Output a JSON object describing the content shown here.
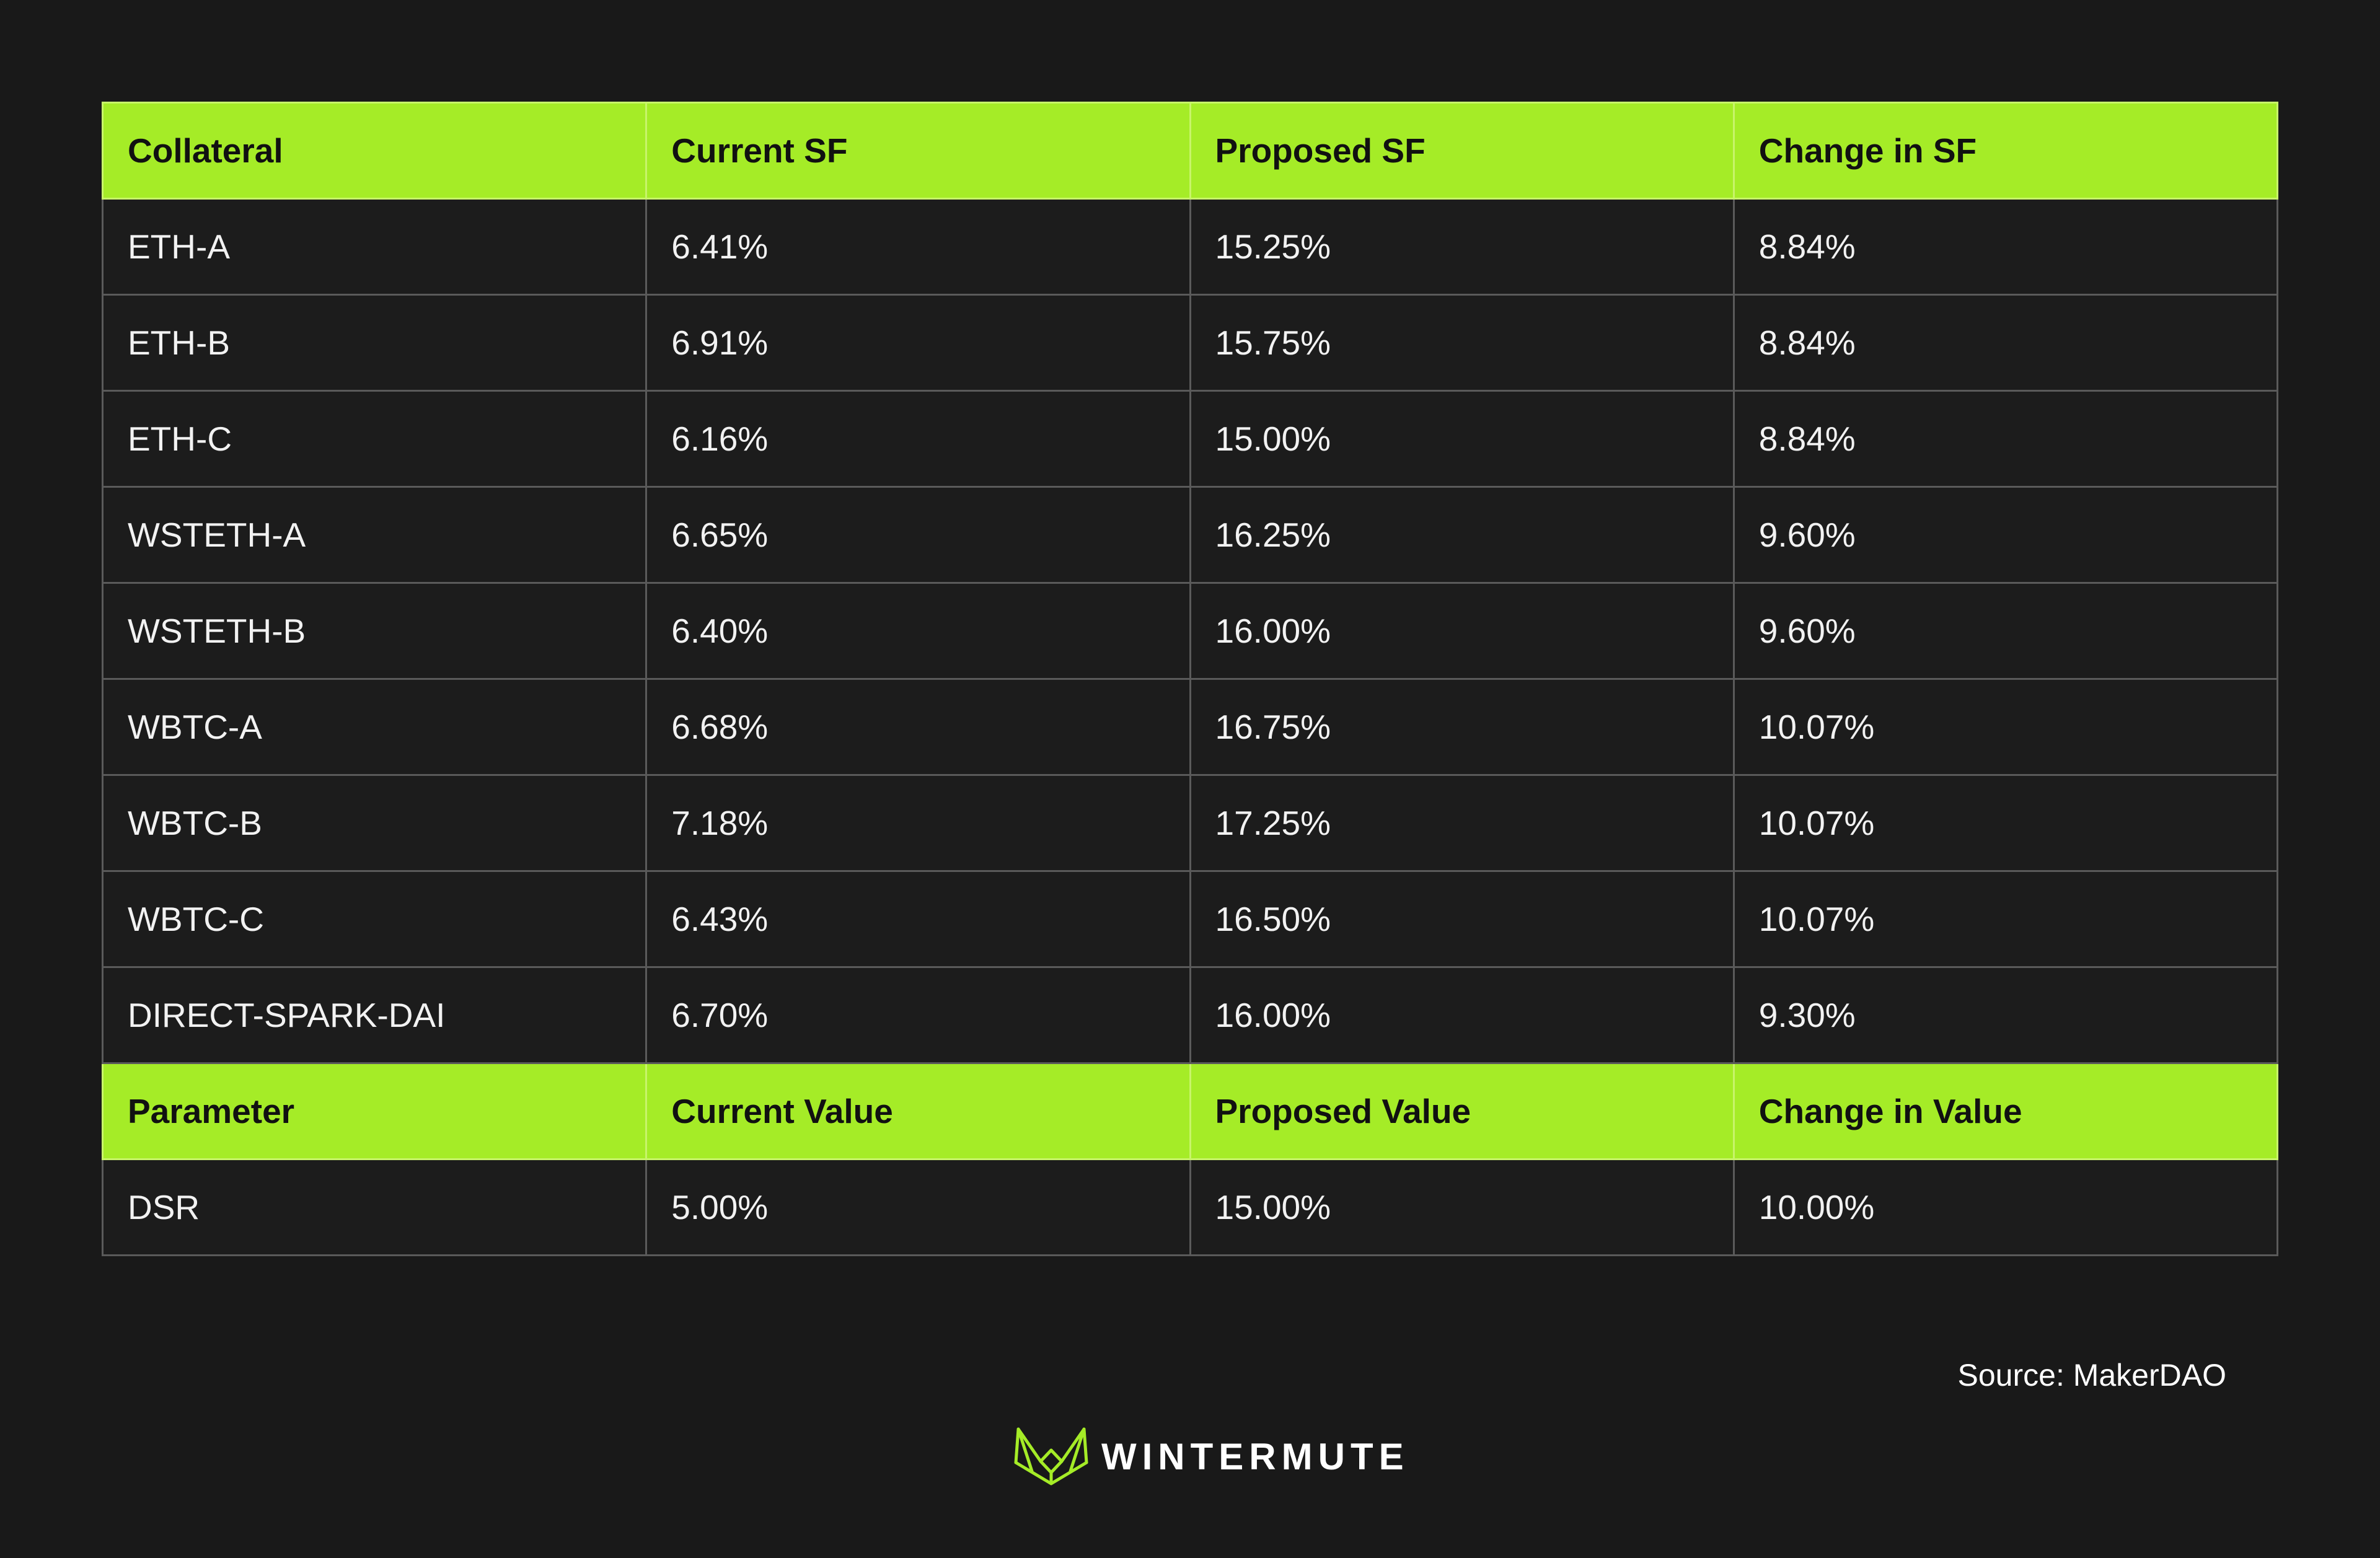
{
  "colors": {
    "background": "#191919",
    "header_accent": "#a5ec27",
    "cell_border": "#5a5a5a"
  },
  "table": {
    "header1": [
      "Collateral",
      "Current SF",
      "Proposed SF",
      "Change in SF"
    ],
    "rows1": [
      [
        "ETH-A",
        "6.41%",
        "15.25%",
        "8.84%"
      ],
      [
        "ETH-B",
        "6.91%",
        "15.75%",
        "8.84%"
      ],
      [
        "ETH-C",
        "6.16%",
        "15.00%",
        "8.84%"
      ],
      [
        "WSTETH-A",
        "6.65%",
        "16.25%",
        "9.60%"
      ],
      [
        "WSTETH-B",
        "6.40%",
        "16.00%",
        "9.60%"
      ],
      [
        "WBTC-A",
        "6.68%",
        "16.75%",
        "10.07%"
      ],
      [
        "WBTC-B",
        "7.18%",
        "17.25%",
        "10.07%"
      ],
      [
        "WBTC-C",
        "6.43%",
        "16.50%",
        "10.07%"
      ],
      [
        "DIRECT-SPARK-DAI",
        "6.70%",
        "16.00%",
        "9.30%"
      ]
    ],
    "header2": [
      "Parameter",
      "Current Value",
      "Proposed Value",
      "Change in Value"
    ],
    "rows2": [
      [
        "DSR",
        "5.00%",
        "15.00%",
        "10.00%"
      ]
    ]
  },
  "source": "Source: MakerDAO",
  "brand": {
    "name": "WINTERMUTE",
    "logo_icon": "wintermute-logo-icon"
  }
}
